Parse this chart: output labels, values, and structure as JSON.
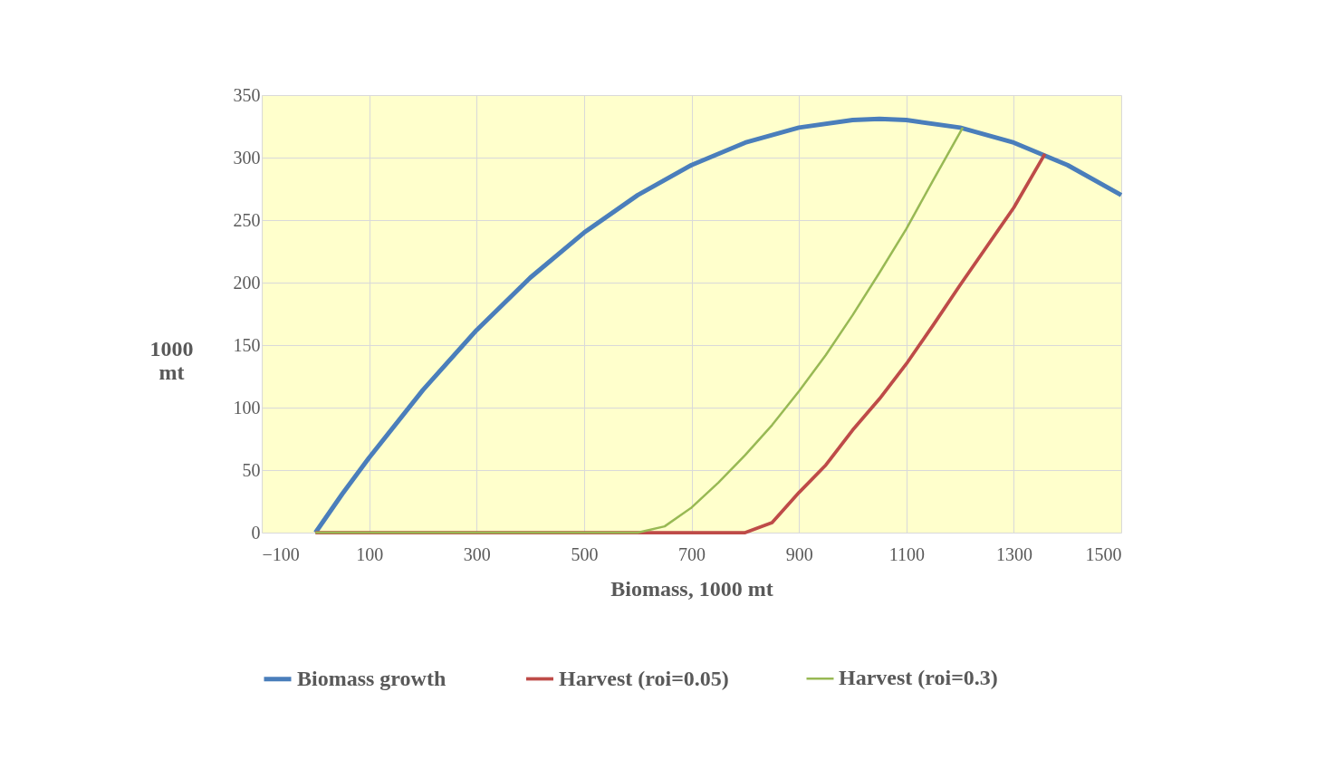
{
  "chart_data": {
    "type": "line",
    "xlabel": "Biomass, 1000 mt",
    "ylabel": "1000 mt",
    "xlim": [
      -100,
      1500
    ],
    "ylim": [
      0,
      350
    ],
    "xticks": [
      -100,
      100,
      300,
      500,
      700,
      900,
      1100,
      1300,
      1500
    ],
    "yticks": [
      0,
      50,
      100,
      150,
      200,
      250,
      300,
      350
    ],
    "grid": true,
    "legend": "bottom",
    "series": [
      {
        "name": "Biomass growth",
        "color": "#4a7ebb",
        "x": [
          0,
          50,
          100,
          200,
          300,
          400,
          500,
          600,
          700,
          800,
          900,
          1000,
          1050,
          1100,
          1200,
          1300,
          1400,
          1500
        ],
        "values": [
          0,
          31,
          60,
          114,
          162,
          204,
          240,
          270,
          294,
          312,
          324,
          330,
          331,
          330,
          324,
          312,
          294,
          270
        ]
      },
      {
        "name": "Harvest (roi=0.05)",
        "color": "#be4b48",
        "x": [
          0,
          600,
          800,
          850,
          900,
          950,
          1000,
          1050,
          1100,
          1150,
          1200,
          1250,
          1300,
          1358
        ],
        "values": [
          0,
          0,
          0,
          8,
          32,
          54,
          82,
          107,
          135,
          166,
          198,
          229,
          260,
          303
        ]
      },
      {
        "name": "Harvest (roi=0.3)",
        "color": "#98b954",
        "x": [
          0,
          600,
          650,
          700,
          750,
          800,
          850,
          900,
          950,
          1000,
          1050,
          1100,
          1150,
          1205
        ],
        "values": [
          0,
          0,
          5,
          20,
          40,
          62,
          86,
          113,
          142,
          174,
          208,
          243,
          282,
          324
        ]
      }
    ]
  }
}
